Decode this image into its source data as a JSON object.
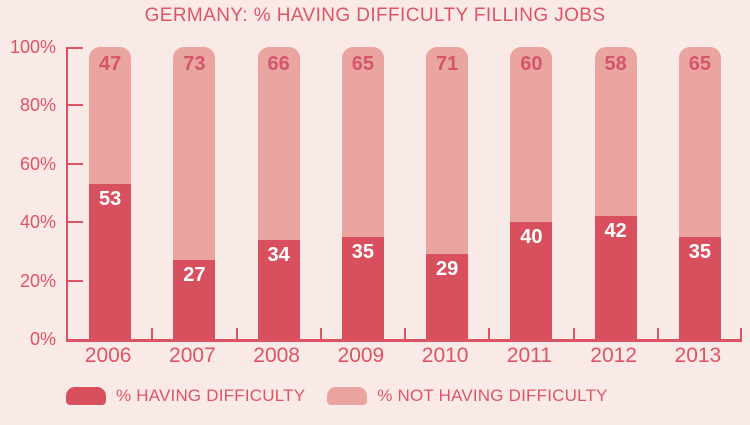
{
  "background_color": "#faeae7",
  "title": "GERMANY: % HAVING DIFFICULTY FILLING JOBS",
  "colors": {
    "background": "#faeae7",
    "axis": "#dc5463",
    "title_text": "#dd5565",
    "dark_series": "#d8505e",
    "light_series": "#eaa5a1",
    "dark_label_text": "#ffffff",
    "light_label_text": "#d4566b"
  },
  "chart_data": {
    "type": "bar",
    "stacked": true,
    "title": "GERMANY: % HAVING DIFFICULTY FILLING JOBS",
    "categories": [
      "2006",
      "2007",
      "2008",
      "2009",
      "2010",
      "2011",
      "2012",
      "2013"
    ],
    "series": [
      {
        "name": "% HAVING DIFFICULTY",
        "color": "#d8505e",
        "label_color": "#ffffff",
        "values": [
          53,
          27,
          34,
          35,
          29,
          40,
          42,
          35
        ]
      },
      {
        "name": "% NOT HAVING DIFFICULTY",
        "color": "#eaa5a1",
        "label_color": "#d4566b",
        "values": [
          47,
          73,
          66,
          65,
          71,
          60,
          58,
          65
        ]
      }
    ],
    "ylabel": "",
    "xlabel": "",
    "ylim": [
      0,
      100
    ],
    "yticks": [
      {
        "value": 0,
        "label": "0%"
      },
      {
        "value": 20,
        "label": "20%"
      },
      {
        "value": 40,
        "label": "40%"
      },
      {
        "value": 60,
        "label": "60%"
      },
      {
        "value": 80,
        "label": "80%"
      },
      {
        "value": 100,
        "label": "100%"
      }
    ],
    "grid": false,
    "legend_position": "bottom"
  },
  "legend": {
    "items": [
      {
        "label": "% HAVING DIFFICULTY",
        "color": "#d8505e"
      },
      {
        "label": "% NOT HAVING DIFFICULTY",
        "color": "#eaa5a1"
      }
    ]
  }
}
